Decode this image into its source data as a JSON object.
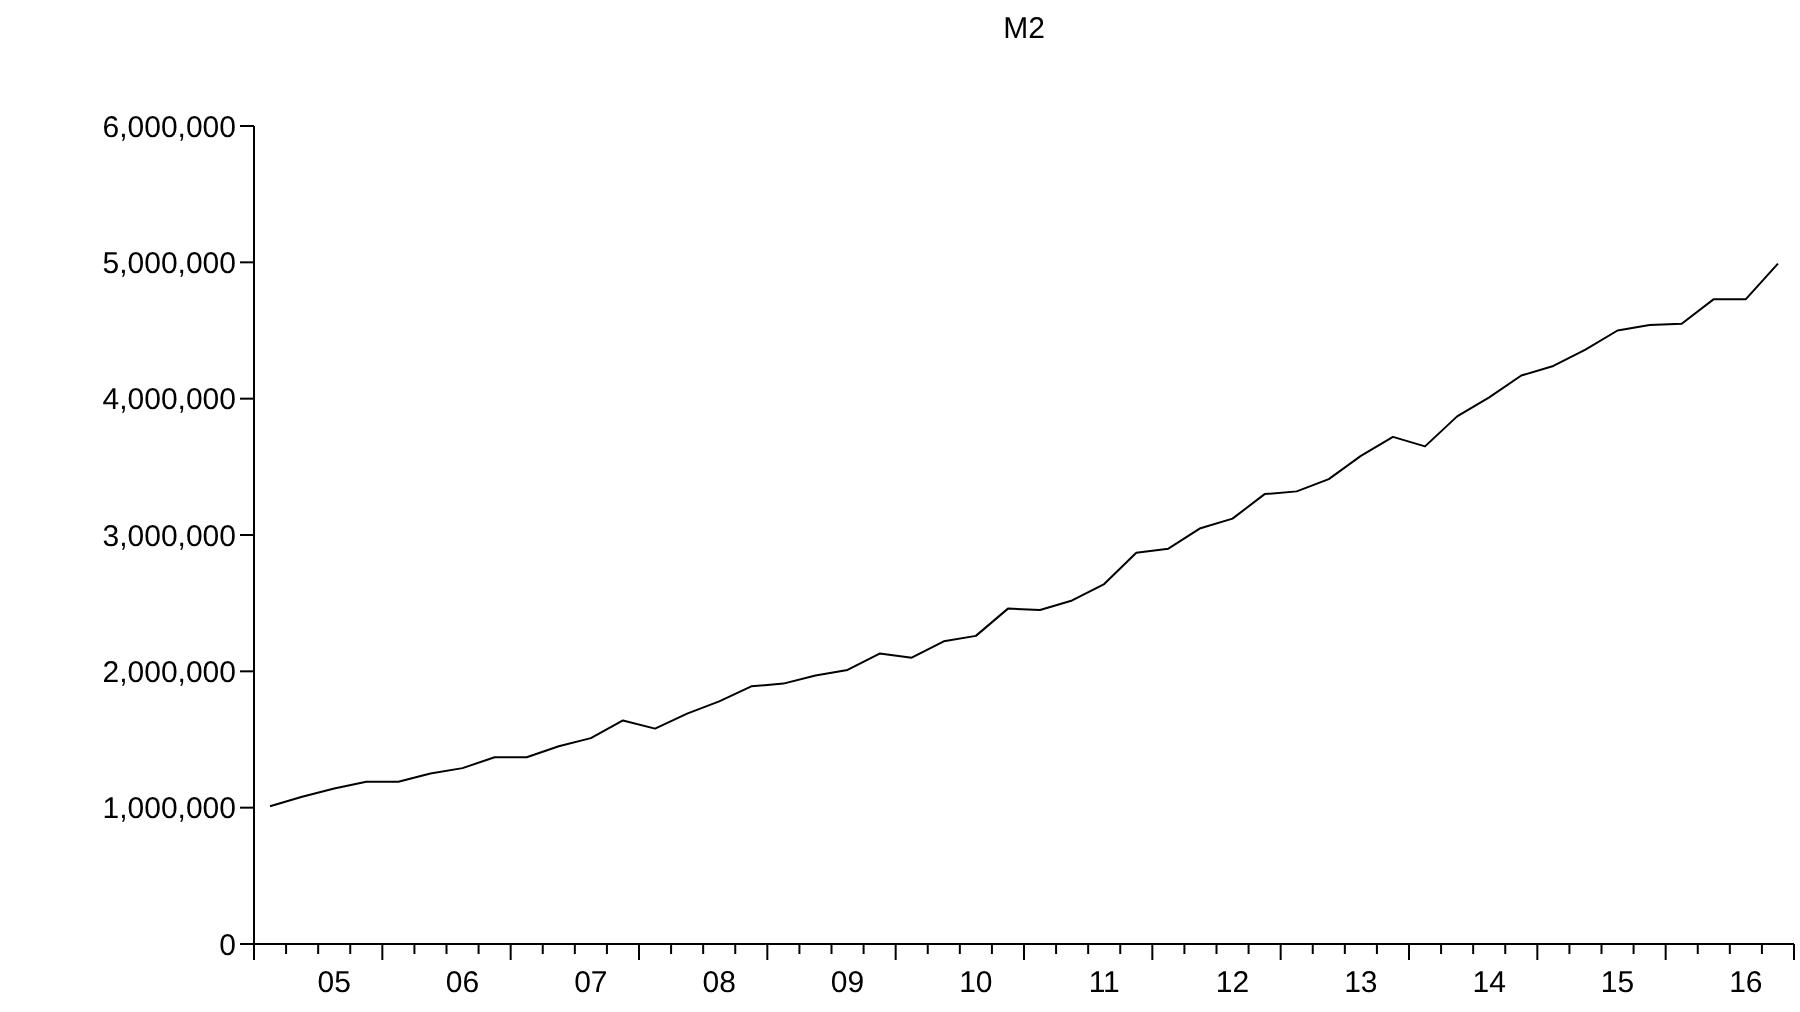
{
  "chart_data": {
    "type": "line",
    "title": "M2",
    "categories": [
      null,
      null,
      "05",
      null,
      null,
      null,
      "06",
      null,
      null,
      null,
      "07",
      null,
      null,
      null,
      "08",
      null,
      null,
      null,
      "09",
      null,
      null,
      null,
      "10",
      null,
      null,
      null,
      "11",
      null,
      null,
      null,
      "12",
      null,
      null,
      null,
      "13",
      null,
      null,
      null,
      "14",
      null,
      null,
      null,
      "15",
      null,
      null,
      null,
      "16",
      null
    ],
    "series": [
      {
        "color": "#000000",
        "values": [
          1010000,
          1080000,
          1140000,
          1190000,
          1190000,
          1250000,
          1290000,
          1370000,
          1370000,
          1450000,
          1510000,
          1640000,
          1580000,
          1690000,
          1780000,
          1890000,
          1910000,
          1970000,
          2010000,
          2130000,
          2100000,
          2220000,
          2260000,
          2460000,
          2450000,
          2520000,
          2640000,
          2870000,
          2900000,
          3050000,
          3120000,
          3300000,
          3320000,
          3410000,
          3580000,
          3720000,
          3650000,
          3870000,
          4010000,
          4170000,
          4240000,
          4360000,
          4500000,
          4540000,
          4550000,
          4730000,
          4730000,
          4990000
        ]
      }
    ],
    "ylim": [
      0,
      6000000
    ],
    "yticks": [
      0,
      {
        "value": 1000000,
        "label": "1,000,000"
      },
      {
        "value": 2000000,
        "label": "2,000,000"
      },
      {
        "value": 3000000,
        "label": "3,000,000"
      },
      {
        "value": 4000000,
        "label": "4,000,000"
      },
      {
        "value": 5000000,
        "label": "5,000,000"
      },
      {
        "value": 6000000,
        "label": "6,000,000"
      }
    ],
    "grid": false,
    "legend": false,
    "marker": "none",
    "line_style": "solid"
  }
}
